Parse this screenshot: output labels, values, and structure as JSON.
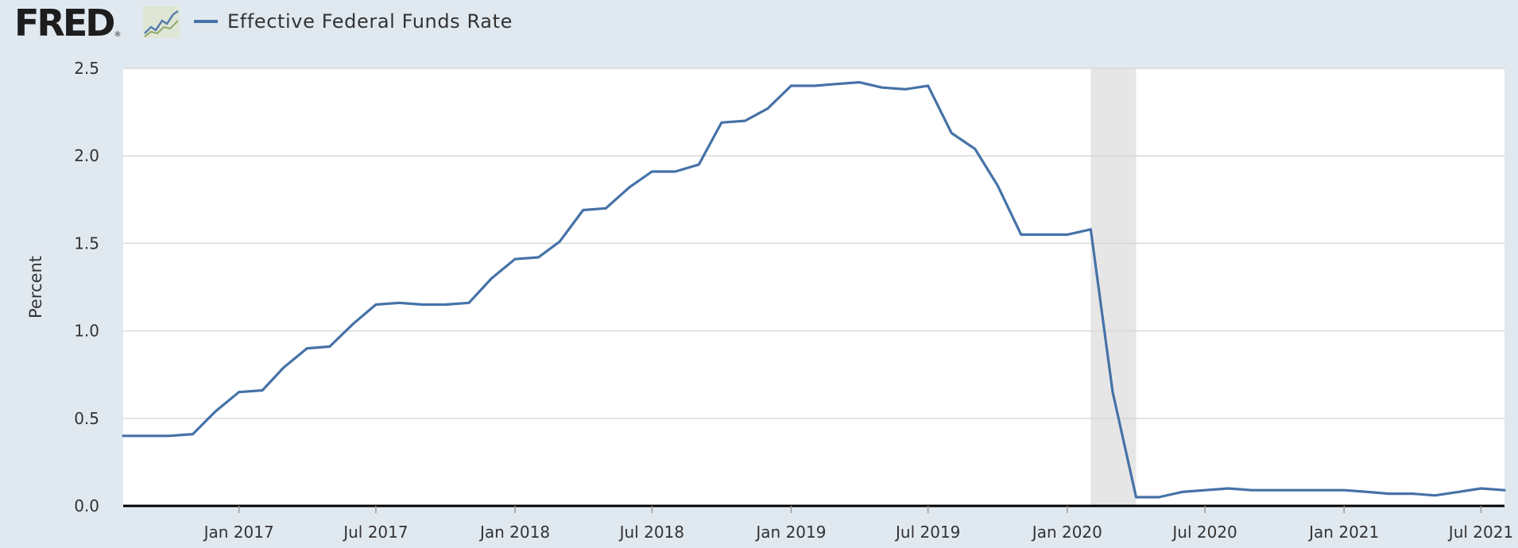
{
  "header": {
    "logo_text": "FRED",
    "logo_reg": "®",
    "logo_icon": "line-graph-icon",
    "legend_label": "Effective Federal Funds Rate"
  },
  "colors": {
    "background": "#e1e9f0",
    "plot_background": "#ffffff",
    "series": "#4572a7",
    "recession": "#e6e6e6",
    "grid": "#d8d8d8",
    "axis": "#000000"
  },
  "chart_data": {
    "type": "line",
    "title": "",
    "xlabel": "",
    "ylabel": "Percent",
    "ylim": [
      0,
      2.5
    ],
    "yticks": [
      0.0,
      0.5,
      1.0,
      1.5,
      2.0,
      2.5
    ],
    "ytick_labels": [
      "0.0",
      "0.5",
      "1.0",
      "1.5",
      "2.0",
      "2.5"
    ],
    "xlim": [
      "2016-08-01",
      "2021-08-01"
    ],
    "xticks": [
      "2017-01-01",
      "2017-07-01",
      "2018-01-01",
      "2018-07-01",
      "2019-01-01",
      "2019-07-01",
      "2020-01-01",
      "2020-07-01",
      "2021-01-01",
      "2021-07-01"
    ],
    "xtick_labels": [
      "Jan 2017",
      "Jul 2017",
      "Jan 2018",
      "Jul 2018",
      "Jan 2019",
      "Jul 2019",
      "Jan 2020",
      "Jul 2020",
      "Jan 2021",
      "Jul 2021"
    ],
    "grid": true,
    "legend": "top-left",
    "recessions": [
      {
        "start": "2020-02-01",
        "end": "2020-04-01"
      }
    ],
    "series": [
      {
        "name": "Effective Federal Funds Rate",
        "x": [
          "2016-08-01",
          "2016-09-01",
          "2016-10-01",
          "2016-11-01",
          "2016-12-01",
          "2017-01-01",
          "2017-02-01",
          "2017-03-01",
          "2017-04-01",
          "2017-05-01",
          "2017-06-01",
          "2017-07-01",
          "2017-08-01",
          "2017-09-01",
          "2017-10-01",
          "2017-11-01",
          "2017-12-01",
          "2018-01-01",
          "2018-02-01",
          "2018-03-01",
          "2018-04-01",
          "2018-05-01",
          "2018-06-01",
          "2018-07-01",
          "2018-08-01",
          "2018-09-01",
          "2018-10-01",
          "2018-11-01",
          "2018-12-01",
          "2019-01-01",
          "2019-02-01",
          "2019-03-01",
          "2019-04-01",
          "2019-05-01",
          "2019-06-01",
          "2019-07-01",
          "2019-08-01",
          "2019-09-01",
          "2019-10-01",
          "2019-11-01",
          "2019-12-01",
          "2020-01-01",
          "2020-02-01",
          "2020-03-01",
          "2020-04-01",
          "2020-05-01",
          "2020-06-01",
          "2020-07-01",
          "2020-08-01",
          "2020-09-01",
          "2020-10-01",
          "2020-11-01",
          "2020-12-01",
          "2021-01-01",
          "2021-02-01",
          "2021-03-01",
          "2021-04-01",
          "2021-05-01",
          "2021-06-01",
          "2021-07-01",
          "2021-08-01"
        ],
        "y": [
          0.4,
          0.4,
          0.4,
          0.41,
          0.54,
          0.65,
          0.66,
          0.79,
          0.9,
          0.91,
          1.04,
          1.15,
          1.16,
          1.15,
          1.15,
          1.16,
          1.3,
          1.41,
          1.42,
          1.51,
          1.69,
          1.7,
          1.82,
          1.91,
          1.91,
          1.95,
          2.19,
          2.2,
          2.27,
          2.4,
          2.4,
          2.41,
          2.42,
          2.39,
          2.38,
          2.4,
          2.13,
          2.04,
          1.83,
          1.55,
          1.55,
          1.55,
          1.58,
          0.65,
          0.05,
          0.05,
          0.08,
          0.09,
          0.1,
          0.09,
          0.09,
          0.09,
          0.09,
          0.09,
          0.08,
          0.07,
          0.07,
          0.06,
          0.08,
          0.1,
          0.09
        ]
      }
    ]
  }
}
